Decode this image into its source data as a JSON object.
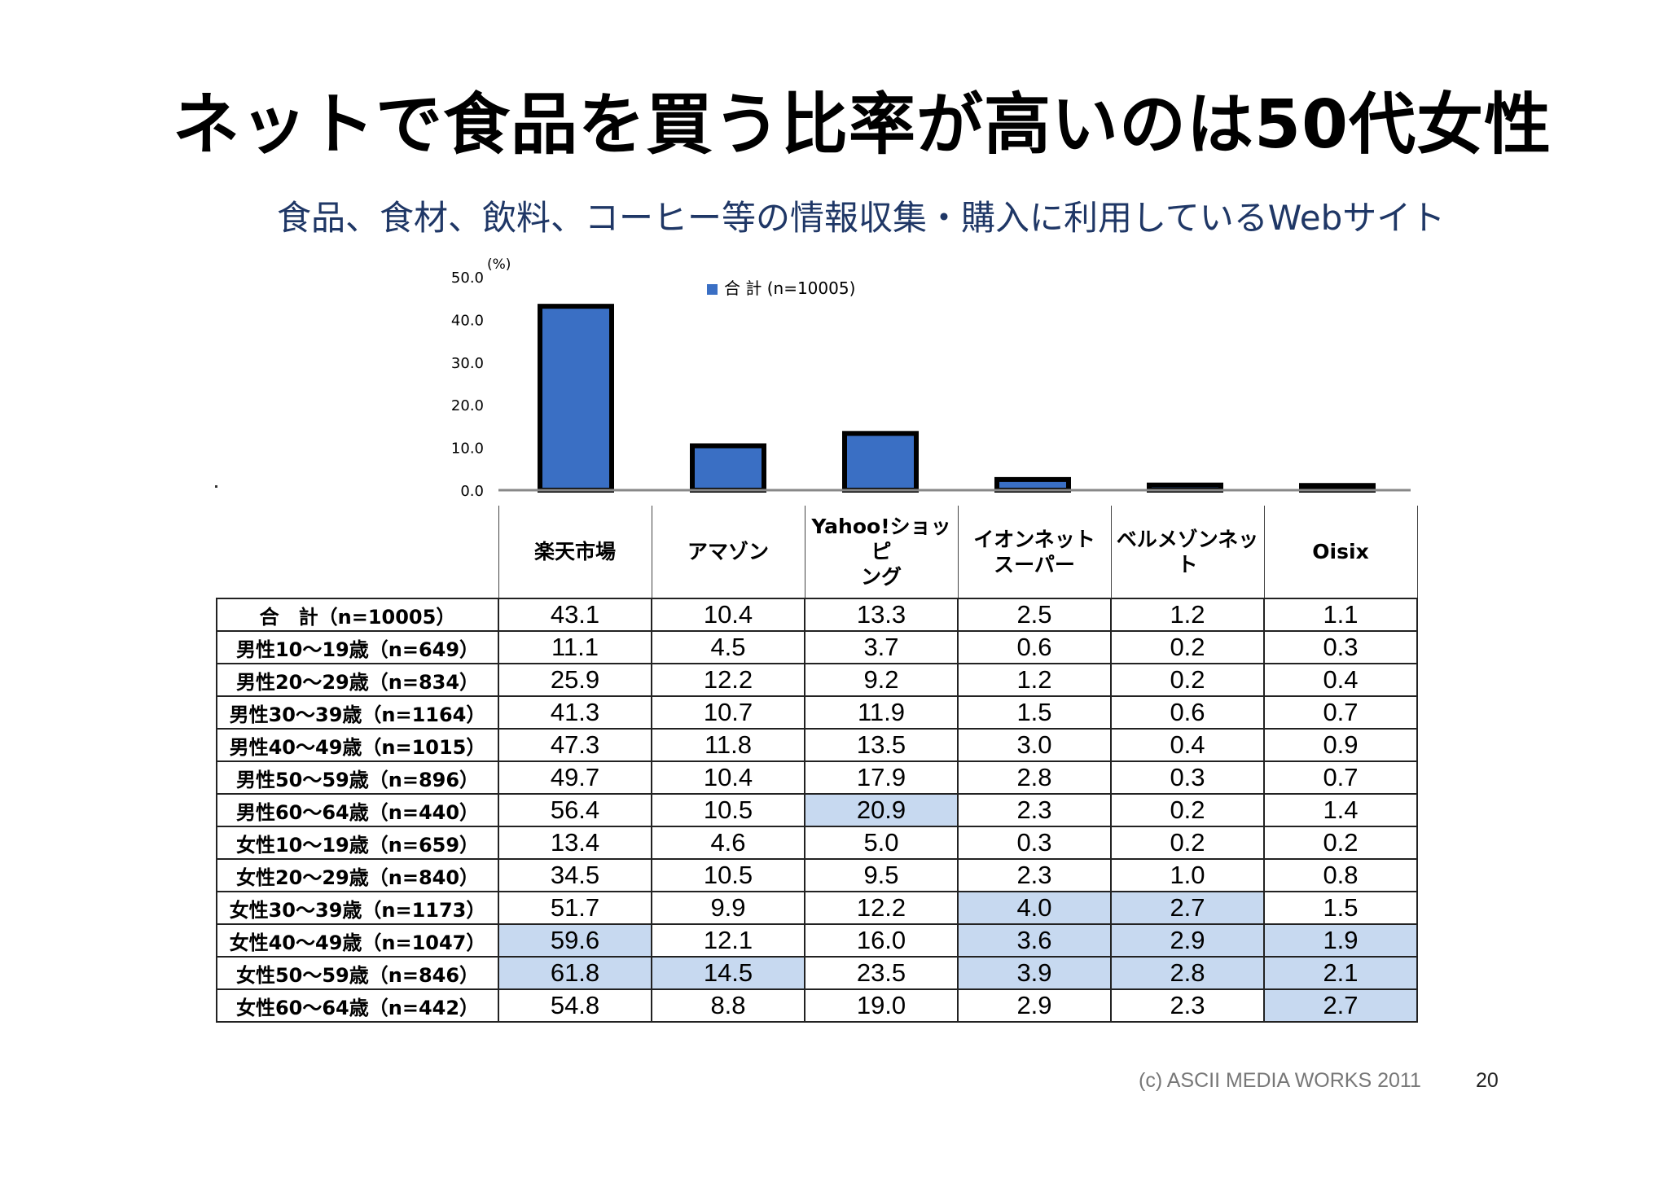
{
  "title": "ネットで食品を買う比率が高いのは50代女性",
  "subtitle": "食品、食材、飲料、コーヒー等の情報収集・購入に利用しているWebサイト",
  "footer": {
    "copyright": "(c) ASCII MEDIA WORKS 2011",
    "page_number": "20"
  },
  "colors": {
    "bar_fill": "#3a6fc4",
    "bar_edge": "#000000",
    "highlight": "#c7d9f0",
    "subtitle": "#1f3766"
  },
  "chart_data": {
    "type": "bar",
    "title": "",
    "xlabel": "",
    "ylabel": "(%)",
    "ylim": [
      0,
      50
    ],
    "yticks": [
      "0.0",
      "10.0",
      "20.0",
      "30.0",
      "40.0",
      "50.0"
    ],
    "legend_position": "top",
    "categories": [
      "楽天市場",
      "アマゾン",
      "Yahoo!ショッピング",
      "イオンネットスーパー",
      "ベルメゾンネット",
      "Oisix"
    ],
    "series": [
      {
        "name": "合 計 (n=10005)",
        "values": [
          43.1,
          10.4,
          13.3,
          2.5,
          1.2,
          1.1
        ]
      }
    ]
  },
  "table": {
    "columns": [
      [
        "楽天市場"
      ],
      [
        "アマゾン"
      ],
      [
        "Yahoo!ショッピ",
        "ング"
      ],
      [
        "イオンネット",
        "スーパー"
      ],
      [
        "ベルメゾンネッ",
        "ト"
      ],
      [
        "Oisix"
      ]
    ],
    "rows": [
      {
        "label": "合　計（n=10005）",
        "values": [
          "43.1",
          "10.4",
          "13.3",
          "2.5",
          "1.2",
          "1.1"
        ],
        "highlight": []
      },
      {
        "label": "男性10～19歳（n=649）",
        "values": [
          "11.1",
          "4.5",
          "3.7",
          "0.6",
          "0.2",
          "0.3"
        ],
        "highlight": []
      },
      {
        "label": "男性20～29歳（n=834）",
        "values": [
          "25.9",
          "12.2",
          "9.2",
          "1.2",
          "0.2",
          "0.4"
        ],
        "highlight": []
      },
      {
        "label": "男性30～39歳（n=1164）",
        "values": [
          "41.3",
          "10.7",
          "11.9",
          "1.5",
          "0.6",
          "0.7"
        ],
        "highlight": []
      },
      {
        "label": "男性40～49歳（n=1015）",
        "values": [
          "47.3",
          "11.8",
          "13.5",
          "3.0",
          "0.4",
          "0.9"
        ],
        "highlight": []
      },
      {
        "label": "男性50～59歳（n=896）",
        "values": [
          "49.7",
          "10.4",
          "17.9",
          "2.8",
          "0.3",
          "0.7"
        ],
        "highlight": []
      },
      {
        "label": "男性60～64歳（n=440）",
        "values": [
          "56.4",
          "10.5",
          "20.9",
          "2.3",
          "0.2",
          "1.4"
        ],
        "highlight": [
          2
        ]
      },
      {
        "label": "女性10～19歳（n=659）",
        "values": [
          "13.4",
          "4.6",
          "5.0",
          "0.3",
          "0.2",
          "0.2"
        ],
        "highlight": []
      },
      {
        "label": "女性20～29歳（n=840）",
        "values": [
          "34.5",
          "10.5",
          "9.5",
          "2.3",
          "1.0",
          "0.8"
        ],
        "highlight": []
      },
      {
        "label": "女性30～39歳（n=1173）",
        "values": [
          "51.7",
          "9.9",
          "12.2",
          "4.0",
          "2.7",
          "1.5"
        ],
        "highlight": [
          3,
          4
        ]
      },
      {
        "label": "女性40～49歳（n=1047）",
        "values": [
          "59.6",
          "12.1",
          "16.0",
          "3.6",
          "2.9",
          "1.9"
        ],
        "highlight": [
          0,
          3,
          4,
          5
        ]
      },
      {
        "label": "女性50～59歳（n=846）",
        "values": [
          "61.8",
          "14.5",
          "23.5",
          "3.9",
          "2.8",
          "2.1"
        ],
        "highlight": [
          0,
          1,
          3,
          4,
          5
        ]
      },
      {
        "label": "女性60～64歳（n=442）",
        "values": [
          "54.8",
          "8.8",
          "19.0",
          "2.9",
          "2.3",
          "2.7"
        ],
        "highlight": [
          5
        ]
      }
    ]
  }
}
